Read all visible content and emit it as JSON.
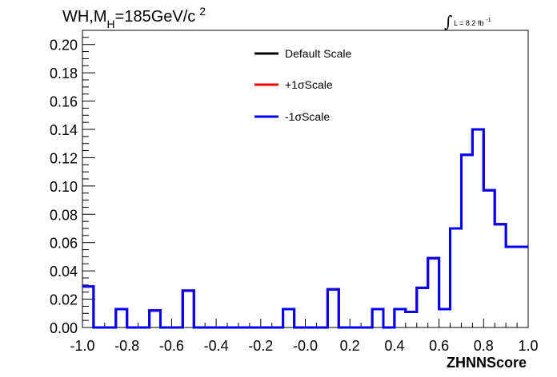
{
  "chart_data": {
    "type": "line",
    "title_parts": {
      "main": "WH,M",
      "subscript": "H",
      "after": "=185GeV/c",
      "superscript": "2"
    },
    "lumi_label": {
      "symbol": "∫",
      "text": "L = 8.2 fb",
      "superscript": "-1"
    },
    "xlabel": "ZHNNScore",
    "ylabel": "",
    "xlim": [
      -1.0,
      1.0
    ],
    "ylim": [
      0.0,
      0.21
    ],
    "x_ticks": [
      "-1.0",
      "-0.8",
      "-0.6",
      "-0.4",
      "-0.2",
      "-0.0",
      "0.2",
      "0.4",
      "0.6",
      "0.8",
      "1.0"
    ],
    "y_ticks": [
      "0.00",
      "0.02",
      "0.04",
      "0.06",
      "0.08",
      "0.10",
      "0.12",
      "0.14",
      "0.16",
      "0.18",
      "0.20"
    ],
    "legend_position": "top-center",
    "bin_edges": [
      -1.0,
      -0.95,
      -0.9,
      -0.85,
      -0.8,
      -0.75,
      -0.7,
      -0.65,
      -0.6,
      -0.55,
      -0.5,
      -0.45,
      -0.4,
      -0.35,
      -0.3,
      -0.25,
      -0.2,
      -0.15,
      -0.1,
      -0.05,
      0.0,
      0.05,
      0.1,
      0.15,
      0.2,
      0.25,
      0.3,
      0.35,
      0.4,
      0.45,
      0.5,
      0.55,
      0.6,
      0.65,
      0.7,
      0.75,
      0.8,
      0.85,
      0.9,
      0.95,
      1.0
    ],
    "series": [
      {
        "name": "Default Scale",
        "color": "#000000",
        "values": [
          0.029,
          0.0,
          0.0,
          0.013,
          0.0,
          0.0,
          0.012,
          0.0,
          0.0,
          0.026,
          0.0,
          0.0,
          0.0,
          0.0,
          0.0,
          0.0,
          0.0,
          0.0,
          0.013,
          0.0,
          0.0,
          0.0,
          0.027,
          0.0,
          0.0,
          0.0,
          0.013,
          0.0,
          0.013,
          0.011,
          0.028,
          0.049,
          0.013,
          0.07,
          0.122,
          0.14,
          0.097,
          0.073,
          0.057,
          0.057
        ]
      },
      {
        "name": "+1σScale",
        "color": "#ff0000",
        "values": [
          0.029,
          0.0,
          0.0,
          0.013,
          0.0,
          0.0,
          0.012,
          0.0,
          0.0,
          0.026,
          0.0,
          0.0,
          0.0,
          0.0,
          0.0,
          0.0,
          0.0,
          0.0,
          0.013,
          0.0,
          0.0,
          0.0,
          0.027,
          0.0,
          0.0,
          0.0,
          0.013,
          0.0,
          0.013,
          0.011,
          0.028,
          0.049,
          0.013,
          0.07,
          0.122,
          0.14,
          0.097,
          0.073,
          0.057,
          0.057
        ]
      },
      {
        "name": "-1σScale",
        "color": "#0000ff",
        "values": [
          0.029,
          0.0,
          0.0,
          0.013,
          0.0,
          0.0,
          0.012,
          0.0,
          0.0,
          0.026,
          0.0,
          0.0,
          0.0,
          0.0,
          0.0,
          0.0,
          0.0,
          0.0,
          0.013,
          0.0,
          0.0,
          0.0,
          0.027,
          0.0,
          0.0,
          0.0,
          0.013,
          0.0,
          0.013,
          0.011,
          0.028,
          0.049,
          0.013,
          0.07,
          0.122,
          0.14,
          0.097,
          0.073,
          0.057,
          0.057
        ]
      }
    ]
  }
}
